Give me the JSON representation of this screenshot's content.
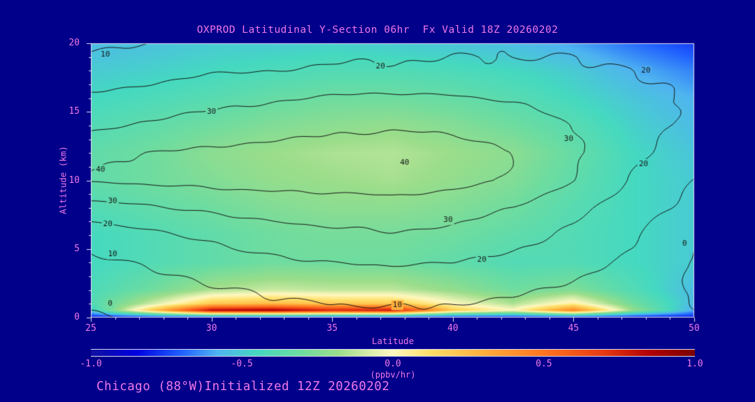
{
  "footer": {
    "text": "Chicago (88°W)Initialized 12Z 20260202"
  },
  "colors": {
    "background": "#00008B",
    "text_magenta": "#F078E6",
    "frame": "#E6E6F2",
    "contour_line": "#141414"
  },
  "chart_data": {
    "type": "heatmap",
    "subtype": "filled-contour-latitude-height-cross-section",
    "title": "OXPROD Latitudinal Y-Section 06hr  Fx Valid 18Z 20260202",
    "xlabel": "Latitude",
    "ylabel": "Altitude (km)",
    "xlim": [
      25,
      50
    ],
    "ylim": [
      0,
      20
    ],
    "x_ticks_major": [
      25,
      30,
      35,
      40,
      45,
      50
    ],
    "x_tick_labels": [
      "25",
      "30",
      "35",
      "40",
      "45",
      "50"
    ],
    "y_ticks_major": [
      0,
      5,
      10,
      15,
      20
    ],
    "y_tick_labels": [
      "0",
      "5",
      "10",
      "15",
      "20"
    ],
    "minor_tick_step": 1,
    "fill": {
      "units": "ppbv/hr",
      "lats": [
        25,
        27.5,
        30,
        32.5,
        35,
        37.5,
        40,
        42.5,
        45,
        47.5,
        50
      ],
      "alts": [
        0,
        0.5,
        1,
        2,
        4,
        6,
        8,
        10,
        12,
        14,
        16,
        18,
        20
      ],
      "values": [
        [
          -0.8,
          -0.8,
          -0.8,
          -0.8,
          -0.8,
          -0.8,
          -0.8,
          -0.8,
          -0.8,
          -0.8,
          -0.8
        ],
        [
          -0.5,
          0.2,
          0.85,
          0.9,
          0.75,
          0.8,
          0.2,
          0.0,
          0.45,
          -0.2,
          -0.6
        ],
        [
          -0.4,
          -0.1,
          0.2,
          0.25,
          0.2,
          0.2,
          0.0,
          -0.15,
          0.05,
          -0.3,
          -0.55
        ],
        [
          -0.42,
          -0.3,
          -0.15,
          -0.1,
          -0.12,
          -0.12,
          -0.2,
          -0.3,
          -0.25,
          -0.4,
          -0.55
        ],
        [
          -0.45,
          -0.4,
          -0.35,
          -0.3,
          -0.3,
          -0.3,
          -0.35,
          -0.4,
          -0.4,
          -0.45,
          -0.5
        ],
        [
          -0.45,
          -0.4,
          -0.35,
          -0.3,
          -0.28,
          -0.28,
          -0.3,
          -0.35,
          -0.4,
          -0.45,
          -0.5
        ],
        [
          -0.4,
          -0.35,
          -0.3,
          -0.25,
          -0.22,
          -0.22,
          -0.25,
          -0.3,
          -0.38,
          -0.45,
          -0.5
        ],
        [
          -0.35,
          -0.3,
          -0.25,
          -0.2,
          -0.18,
          -0.16,
          -0.2,
          -0.25,
          -0.35,
          -0.45,
          -0.5
        ],
        [
          -0.35,
          -0.3,
          -0.22,
          -0.18,
          -0.15,
          -0.14,
          -0.18,
          -0.22,
          -0.33,
          -0.45,
          -0.52
        ],
        [
          -0.4,
          -0.35,
          -0.3,
          -0.25,
          -0.22,
          -0.2,
          -0.24,
          -0.3,
          -0.38,
          -0.48,
          -0.55
        ],
        [
          -0.45,
          -0.42,
          -0.38,
          -0.33,
          -0.3,
          -0.3,
          -0.33,
          -0.38,
          -0.45,
          -0.52,
          -0.58
        ],
        [
          -0.5,
          -0.48,
          -0.45,
          -0.42,
          -0.4,
          -0.4,
          -0.42,
          -0.45,
          -0.5,
          -0.58,
          -0.65
        ],
        [
          -0.55,
          -0.53,
          -0.5,
          -0.5,
          -0.48,
          -0.5,
          -0.52,
          -0.55,
          -0.6,
          -0.68,
          -0.75
        ]
      ]
    },
    "contour": {
      "levels": [
        0,
        10,
        20,
        30,
        40
      ],
      "lats": [
        25,
        27.5,
        30,
        32.5,
        35,
        37.5,
        40,
        42.5,
        45,
        47.5,
        50
      ],
      "alts": [
        0,
        2,
        4,
        6,
        8,
        10,
        12,
        14,
        16,
        18,
        20
      ],
      "values": [
        [
          -1,
          1,
          4,
          7,
          8,
          9,
          8,
          7,
          5,
          3,
          1
        ],
        [
          4,
          6,
          9,
          11,
          12,
          12,
          12,
          11,
          9,
          6,
          -1
        ],
        [
          8,
          11,
          15,
          18,
          20,
          21,
          20,
          17,
          13,
          8,
          -1
        ],
        [
          14,
          18,
          22,
          26,
          28,
          29,
          28,
          24,
          18,
          11,
          1
        ],
        [
          26,
          29,
          32,
          34,
          35,
          36,
          34,
          30,
          23,
          14,
          7
        ],
        [
          41,
          42,
          43,
          44,
          44,
          45,
          43,
          39,
          30,
          19,
          10
        ],
        [
          38,
          40,
          42,
          43,
          44,
          45,
          44,
          40,
          32,
          22,
          14
        ],
        [
          28,
          31,
          34,
          36,
          38,
          39,
          38,
          35,
          30,
          24,
          18
        ],
        [
          22,
          24,
          27,
          29,
          31,
          32,
          31,
          29,
          26,
          22,
          19
        ],
        [
          14,
          16,
          19,
          20,
          21,
          21,
          21,
          21,
          21,
          20,
          18
        ],
        [
          8,
          10,
          13,
          15,
          17,
          18,
          19,
          19,
          19,
          18,
          16
        ]
      ]
    },
    "contour_labels": [
      {
        "text": "10",
        "lat": 25.6,
        "alt": 19.2
      },
      {
        "text": "20",
        "lat": 37.0,
        "alt": 18.3
      },
      {
        "text": "20",
        "lat": 48.0,
        "alt": 18.0
      },
      {
        "text": "30",
        "lat": 30.0,
        "alt": 15.0
      },
      {
        "text": "30",
        "lat": 44.8,
        "alt": 13.0
      },
      {
        "text": "40",
        "lat": 25.4,
        "alt": 10.8
      },
      {
        "text": "40",
        "lat": 38.0,
        "alt": 11.3
      },
      {
        "text": "30",
        "lat": 25.9,
        "alt": 8.5
      },
      {
        "text": "30",
        "lat": 39.8,
        "alt": 7.1
      },
      {
        "text": "20",
        "lat": 25.7,
        "alt": 6.8
      },
      {
        "text": "20",
        "lat": 47.9,
        "alt": 11.2
      },
      {
        "text": "20",
        "lat": 41.2,
        "alt": 4.2
      },
      {
        "text": "10",
        "lat": 25.9,
        "alt": 4.6
      },
      {
        "text": "10",
        "lat": 37.7,
        "alt": 0.9
      },
      {
        "text": "0",
        "lat": 25.8,
        "alt": 1.0
      },
      {
        "text": "0",
        "lat": 49.6,
        "alt": 5.4
      }
    ],
    "colormap": [
      {
        "v": -1.0,
        "c": "#1010A0"
      },
      {
        "v": -0.85,
        "c": "#0000E0"
      },
      {
        "v": -0.7,
        "c": "#2060FF"
      },
      {
        "v": -0.58,
        "c": "#4FB4F0"
      },
      {
        "v": -0.45,
        "c": "#45D9C0"
      },
      {
        "v": -0.3,
        "c": "#6FDC9F"
      },
      {
        "v": -0.18,
        "c": "#9BDD8A"
      },
      {
        "v": -0.08,
        "c": "#D6EDA8"
      },
      {
        "v": 0.0,
        "c": "#FFF8C0"
      },
      {
        "v": 0.12,
        "c": "#FFE06A"
      },
      {
        "v": 0.3,
        "c": "#FFAE3C"
      },
      {
        "v": 0.5,
        "c": "#FF7420"
      },
      {
        "v": 0.7,
        "c": "#E63914"
      },
      {
        "v": 0.85,
        "c": "#B20000"
      },
      {
        "v": 1.0,
        "c": "#7A0000"
      }
    ],
    "colorbar": {
      "range": [
        -1,
        1
      ],
      "ticks": [
        -1.0,
        -0.5,
        0.0,
        0.5,
        1.0
      ],
      "tick_labels": [
        "-1.0",
        "-0.5",
        "0.0",
        "0.5",
        "1.0"
      ],
      "label": "(ppbv/hr)"
    }
  }
}
